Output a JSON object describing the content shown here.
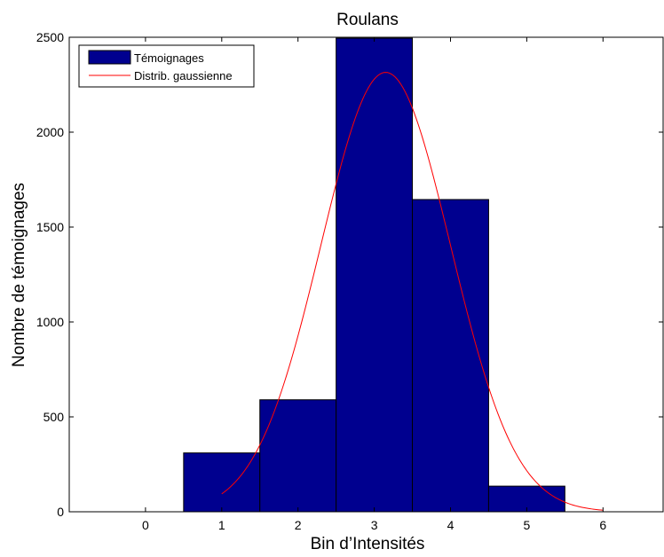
{
  "chart_data": {
    "type": "bar",
    "title": "Roulans",
    "xlabel": "Bin d’Intensités",
    "ylabel": "Nombre de témoignages",
    "x_ticks": [
      "0",
      "1",
      "2",
      "3",
      "4",
      "5",
      "6"
    ],
    "y_ticks": [
      "0",
      "500",
      "1000",
      "1500",
      "2000",
      "2500"
    ],
    "xlim": [
      -1,
      6.8
    ],
    "ylim": [
      0,
      2500
    ],
    "grid": false,
    "legend_position": "top-left",
    "categories": [
      1,
      2,
      3,
      4,
      5
    ],
    "series": [
      {
        "name": "Témoignages",
        "type": "bar",
        "color": "#00008f",
        "values": [
          310,
          590,
          2495,
          1645,
          135
        ]
      },
      {
        "name": "Distrib. gaussienne",
        "type": "line",
        "color": "#ff0000",
        "mean": 3.15,
        "std": 0.85,
        "peak": 2315,
        "x_range": [
          1,
          6
        ]
      }
    ]
  }
}
